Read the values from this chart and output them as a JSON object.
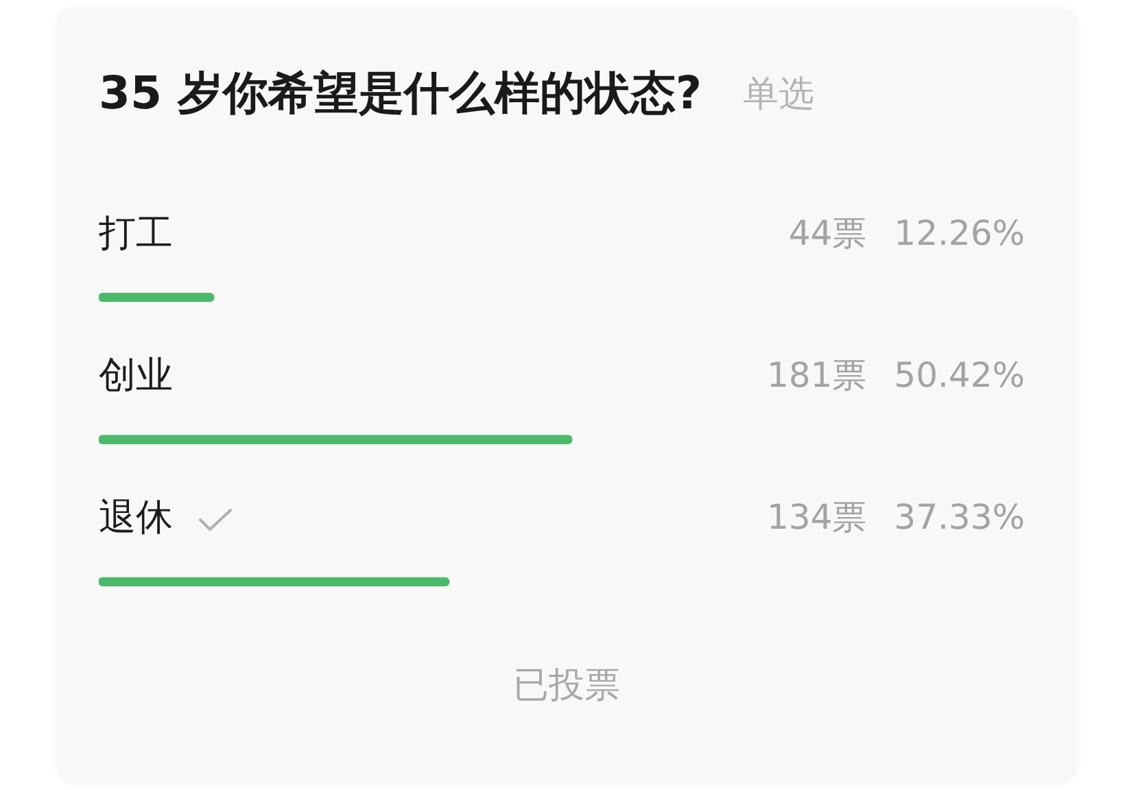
{
  "chart_data": {
    "type": "bar",
    "orientation": "horizontal",
    "title": "35 岁你希望是什么样的状态?",
    "subtitle": "单选",
    "categories": [
      "打工",
      "创业",
      "退休"
    ],
    "values": [
      12.26,
      50.42,
      37.33
    ],
    "color": "#4cb96a",
    "value_labels": [
      "44票 12.26%",
      "181票 50.42%",
      "134票 37.33%"
    ],
    "tick_labels": "y",
    "annotations": [
      "已投票"
    ]
  }
}
